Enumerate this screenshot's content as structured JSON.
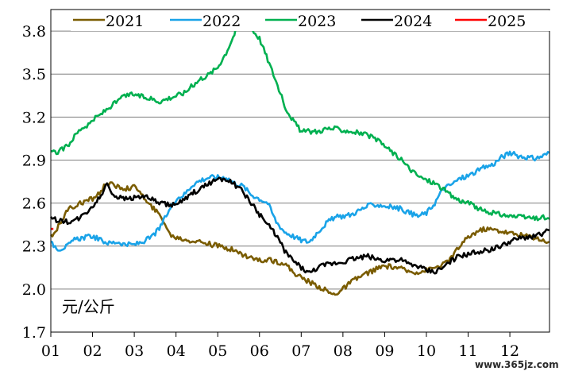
{
  "chart_data": {
    "type": "line",
    "y_unit_label": "元/公斤",
    "ylim": [
      1.7,
      3.95
    ],
    "yticks": [
      "1.7",
      "2.0",
      "2.3",
      "2.6",
      "2.9",
      "3.2",
      "3.5",
      "3.8"
    ],
    "xticks": [
      "01",
      "02",
      "03",
      "04",
      "05",
      "06",
      "07",
      "08",
      "09",
      "10",
      "11",
      "12"
    ],
    "x_range": [
      1,
      12.95
    ],
    "grid": "horizontal",
    "legend_position": "top",
    "series": [
      {
        "name": "2021",
        "color": "#7a5c00",
        "points": [
          [
            1,
            2.37
          ],
          [
            1.15,
            2.42
          ],
          [
            1.4,
            2.55
          ],
          [
            1.7,
            2.6
          ],
          [
            2.0,
            2.63
          ],
          [
            2.2,
            2.68
          ],
          [
            2.35,
            2.75
          ],
          [
            2.5,
            2.72
          ],
          [
            2.8,
            2.7
          ],
          [
            3.0,
            2.71
          ],
          [
            3.1,
            2.7
          ],
          [
            3.3,
            2.6
          ],
          [
            3.5,
            2.55
          ],
          [
            3.7,
            2.48
          ],
          [
            3.85,
            2.38
          ],
          [
            4.0,
            2.36
          ],
          [
            4.3,
            2.34
          ],
          [
            4.6,
            2.33
          ],
          [
            5.0,
            2.3
          ],
          [
            5.3,
            2.28
          ],
          [
            5.6,
            2.24
          ],
          [
            6.0,
            2.2
          ],
          [
            6.3,
            2.2
          ],
          [
            6.6,
            2.18
          ],
          [
            6.8,
            2.12
          ],
          [
            7.0,
            2.08
          ],
          [
            7.2,
            2.05
          ],
          [
            7.4,
            2.02
          ],
          [
            7.6,
            1.99
          ],
          [
            7.75,
            1.96
          ],
          [
            7.9,
            1.98
          ],
          [
            8.0,
            2.0
          ],
          [
            8.2,
            2.05
          ],
          [
            8.5,
            2.1
          ],
          [
            8.8,
            2.14
          ],
          [
            9.0,
            2.16
          ],
          [
            9.3,
            2.15
          ],
          [
            9.6,
            2.12
          ],
          [
            9.8,
            2.12
          ],
          [
            10.0,
            2.13
          ],
          [
            10.2,
            2.15
          ],
          [
            10.4,
            2.17
          ],
          [
            10.6,
            2.22
          ],
          [
            10.8,
            2.3
          ],
          [
            11.0,
            2.36
          ],
          [
            11.2,
            2.4
          ],
          [
            11.4,
            2.42
          ],
          [
            11.7,
            2.41
          ],
          [
            12.0,
            2.39
          ],
          [
            12.2,
            2.38
          ],
          [
            12.4,
            2.37
          ],
          [
            12.6,
            2.36
          ],
          [
            12.8,
            2.34
          ],
          [
            12.95,
            2.33
          ]
        ]
      },
      {
        "name": "2022",
        "color": "#1aa3e8",
        "points": [
          [
            1,
            2.32
          ],
          [
            1.2,
            2.28
          ],
          [
            1.4,
            2.3
          ],
          [
            1.6,
            2.35
          ],
          [
            1.8,
            2.36
          ],
          [
            2.0,
            2.37
          ],
          [
            2.2,
            2.34
          ],
          [
            2.4,
            2.32
          ],
          [
            2.6,
            2.33
          ],
          [
            2.8,
            2.31
          ],
          [
            3.0,
            2.31
          ],
          [
            3.2,
            2.33
          ],
          [
            3.4,
            2.36
          ],
          [
            3.6,
            2.42
          ],
          [
            3.8,
            2.53
          ],
          [
            4.0,
            2.63
          ],
          [
            4.2,
            2.66
          ],
          [
            4.4,
            2.73
          ],
          [
            4.6,
            2.76
          ],
          [
            4.8,
            2.78
          ],
          [
            5.0,
            2.78
          ],
          [
            5.2,
            2.78
          ],
          [
            5.4,
            2.74
          ],
          [
            5.6,
            2.72
          ],
          [
            5.8,
            2.66
          ],
          [
            6.0,
            2.63
          ],
          [
            6.2,
            2.6
          ],
          [
            6.4,
            2.47
          ],
          [
            6.6,
            2.4
          ],
          [
            6.8,
            2.37
          ],
          [
            7.0,
            2.34
          ],
          [
            7.2,
            2.33
          ],
          [
            7.4,
            2.4
          ],
          [
            7.6,
            2.46
          ],
          [
            7.8,
            2.5
          ],
          [
            8.0,
            2.51
          ],
          [
            8.2,
            2.52
          ],
          [
            8.4,
            2.55
          ],
          [
            8.6,
            2.58
          ],
          [
            8.8,
            2.59
          ],
          [
            9.0,
            2.58
          ],
          [
            9.2,
            2.57
          ],
          [
            9.4,
            2.56
          ],
          [
            9.6,
            2.53
          ],
          [
            9.8,
            2.51
          ],
          [
            10.0,
            2.53
          ],
          [
            10.2,
            2.6
          ],
          [
            10.4,
            2.7
          ],
          [
            10.6,
            2.73
          ],
          [
            10.8,
            2.77
          ],
          [
            11.0,
            2.79
          ],
          [
            11.2,
            2.82
          ],
          [
            11.4,
            2.85
          ],
          [
            11.6,
            2.87
          ],
          [
            11.8,
            2.92
          ],
          [
            12.0,
            2.95
          ],
          [
            12.2,
            2.93
          ],
          [
            12.4,
            2.92
          ],
          [
            12.6,
            2.91
          ],
          [
            12.8,
            2.93
          ],
          [
            12.95,
            2.95
          ]
        ]
      },
      {
        "name": "2023",
        "color": "#00b050",
        "points": [
          [
            1,
            2.95
          ],
          [
            1.2,
            2.96
          ],
          [
            1.4,
            3.0
          ],
          [
            1.6,
            3.08
          ],
          [
            1.75,
            3.13
          ],
          [
            1.9,
            3.14
          ],
          [
            2.0,
            3.18
          ],
          [
            2.2,
            3.22
          ],
          [
            2.4,
            3.27
          ],
          [
            2.6,
            3.31
          ],
          [
            2.8,
            3.35
          ],
          [
            3.0,
            3.36
          ],
          [
            3.2,
            3.34
          ],
          [
            3.4,
            3.33
          ],
          [
            3.6,
            3.31
          ],
          [
            3.8,
            3.33
          ],
          [
            4.0,
            3.35
          ],
          [
            4.2,
            3.37
          ],
          [
            4.4,
            3.42
          ],
          [
            4.6,
            3.47
          ],
          [
            4.8,
            3.5
          ],
          [
            5.0,
            3.55
          ],
          [
            5.2,
            3.65
          ],
          [
            5.4,
            3.78
          ],
          [
            5.5,
            3.87
          ],
          [
            5.6,
            3.85
          ],
          [
            5.8,
            3.82
          ],
          [
            6.0,
            3.75
          ],
          [
            6.2,
            3.6
          ],
          [
            6.4,
            3.45
          ],
          [
            6.6,
            3.28
          ],
          [
            6.8,
            3.18
          ],
          [
            7.0,
            3.1
          ],
          [
            7.2,
            3.1
          ],
          [
            7.4,
            3.1
          ],
          [
            7.6,
            3.12
          ],
          [
            7.8,
            3.12
          ],
          [
            8.0,
            3.11
          ],
          [
            8.2,
            3.1
          ],
          [
            8.4,
            3.09
          ],
          [
            8.6,
            3.07
          ],
          [
            8.8,
            3.04
          ],
          [
            9.0,
            3.0
          ],
          [
            9.2,
            2.95
          ],
          [
            9.4,
            2.9
          ],
          [
            9.6,
            2.84
          ],
          [
            9.8,
            2.79
          ],
          [
            10.0,
            2.76
          ],
          [
            10.2,
            2.74
          ],
          [
            10.4,
            2.7
          ],
          [
            10.6,
            2.65
          ],
          [
            10.8,
            2.62
          ],
          [
            11.0,
            2.6
          ],
          [
            11.2,
            2.57
          ],
          [
            11.4,
            2.54
          ],
          [
            11.6,
            2.53
          ],
          [
            11.8,
            2.52
          ],
          [
            12.0,
            2.51
          ],
          [
            12.2,
            2.5
          ],
          [
            12.4,
            2.5
          ],
          [
            12.6,
            2.49
          ],
          [
            12.8,
            2.5
          ],
          [
            12.95,
            2.49
          ]
        ]
      },
      {
        "name": "2024",
        "color": "#000000",
        "points": [
          [
            1,
            2.49
          ],
          [
            1.2,
            2.48
          ],
          [
            1.4,
            2.47
          ],
          [
            1.6,
            2.48
          ],
          [
            1.8,
            2.52
          ],
          [
            2.0,
            2.58
          ],
          [
            2.2,
            2.65
          ],
          [
            2.35,
            2.74
          ],
          [
            2.5,
            2.66
          ],
          [
            2.7,
            2.63
          ],
          [
            3.0,
            2.64
          ],
          [
            3.2,
            2.65
          ],
          [
            3.4,
            2.63
          ],
          [
            3.6,
            2.6
          ],
          [
            3.8,
            2.59
          ],
          [
            4.0,
            2.59
          ],
          [
            4.2,
            2.62
          ],
          [
            4.4,
            2.67
          ],
          [
            4.6,
            2.7
          ],
          [
            4.8,
            2.74
          ],
          [
            5.0,
            2.77
          ],
          [
            5.2,
            2.77
          ],
          [
            5.4,
            2.73
          ],
          [
            5.6,
            2.68
          ],
          [
            5.8,
            2.6
          ],
          [
            6.0,
            2.52
          ],
          [
            6.2,
            2.45
          ],
          [
            6.4,
            2.38
          ],
          [
            6.6,
            2.27
          ],
          [
            6.8,
            2.2
          ],
          [
            7.0,
            2.15
          ],
          [
            7.2,
            2.11
          ],
          [
            7.4,
            2.15
          ],
          [
            7.6,
            2.17
          ],
          [
            7.8,
            2.18
          ],
          [
            8.0,
            2.19
          ],
          [
            8.2,
            2.21
          ],
          [
            8.4,
            2.22
          ],
          [
            8.6,
            2.23
          ],
          [
            8.8,
            2.21
          ],
          [
            9.0,
            2.2
          ],
          [
            9.2,
            2.21
          ],
          [
            9.4,
            2.2
          ],
          [
            9.6,
            2.17
          ],
          [
            9.8,
            2.16
          ],
          [
            10.0,
            2.13
          ],
          [
            10.2,
            2.12
          ],
          [
            10.4,
            2.15
          ],
          [
            10.6,
            2.2
          ],
          [
            10.8,
            2.23
          ],
          [
            11.0,
            2.24
          ],
          [
            11.2,
            2.26
          ],
          [
            11.4,
            2.27
          ],
          [
            11.6,
            2.28
          ],
          [
            11.8,
            2.3
          ],
          [
            12.0,
            2.33
          ],
          [
            12.2,
            2.35
          ],
          [
            12.4,
            2.36
          ],
          [
            12.6,
            2.37
          ],
          [
            12.8,
            2.39
          ],
          [
            12.95,
            2.41
          ]
        ]
      },
      {
        "name": "2025",
        "color": "#ff0000",
        "points": [
          [
            1,
            2.42
          ],
          [
            1.06,
            2.42
          ]
        ]
      }
    ]
  },
  "watermark": "www.365jz.com"
}
